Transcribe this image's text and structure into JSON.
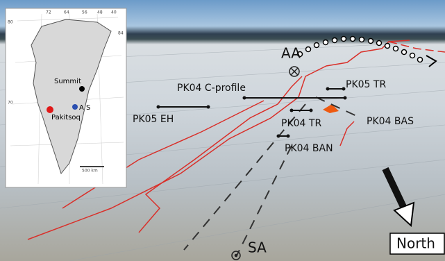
{
  "labels": {
    "aa": "AA",
    "sa": "SA",
    "north": "North",
    "pk04_c_profile": "PK04 C-profile",
    "pk05_tr": "PK05 TR",
    "pk04_tr": "PK04 TR",
    "pk04_bas": "PK04 BAS",
    "pk04_ban": "PK04 BAN",
    "pk05_eh": "PK05 EH"
  },
  "inset": {
    "summit": "Summit",
    "as": "A S",
    "pakitsoq": "Pakitsoq",
    "scale": "500 km",
    "ticks_top": [
      "72",
      "64",
      "56",
      "48",
      "40"
    ],
    "tick_right": "84",
    "tick_left_top": "80",
    "tick_left_mid": "70"
  }
}
